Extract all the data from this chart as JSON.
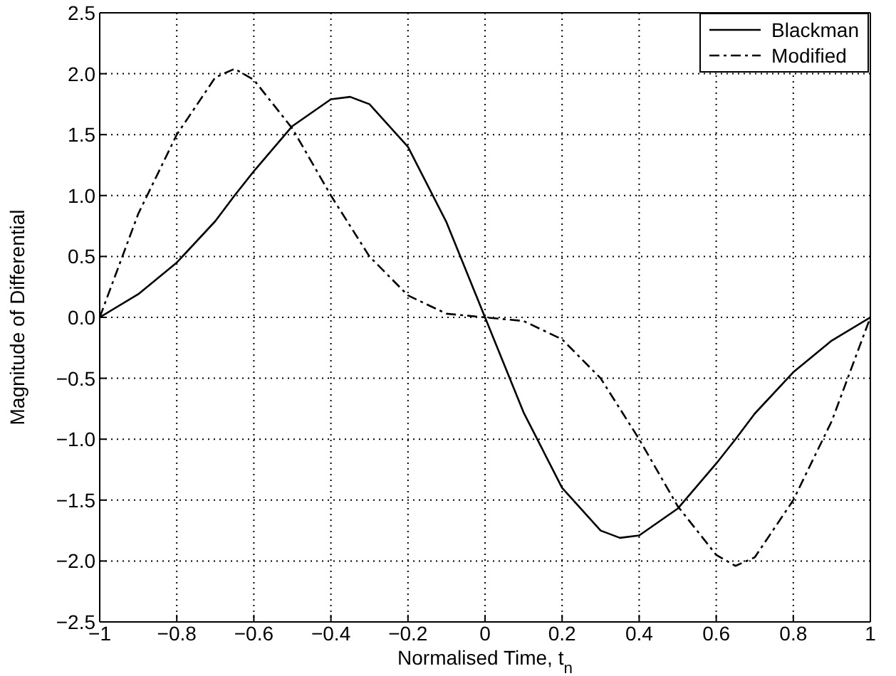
{
  "chart_data": {
    "type": "line",
    "xlabel": "Normalised Time, t$_{n}$",
    "ylabel": "Magnitude of Differential",
    "x": [
      -1,
      -0.9,
      -0.8,
      -0.7,
      -0.65,
      -0.6,
      -0.5,
      -0.4,
      -0.35,
      -0.3,
      -0.2,
      -0.1,
      0,
      0.1,
      0.2,
      0.3,
      0.35,
      0.4,
      0.5,
      0.6,
      0.65,
      0.7,
      0.8,
      0.9,
      1
    ],
    "series": [
      {
        "name": "Blackman",
        "color": "#000000",
        "line_style": "solid",
        "values": [
          0,
          0.19,
          0.45,
          0.79,
          1.0,
          1.2,
          1.57,
          1.79,
          1.81,
          1.75,
          1.4,
          0.78,
          0,
          -0.78,
          -1.4,
          -1.75,
          -1.81,
          -1.79,
          -1.57,
          -1.2,
          -1.0,
          -0.79,
          -0.45,
          -0.19,
          0
        ]
      },
      {
        "name": "Modified",
        "color": "#000000",
        "line_style": "dashed",
        "values": [
          0,
          0.85,
          1.5,
          1.97,
          2.04,
          1.95,
          1.55,
          1.0,
          0.75,
          0.5,
          0.18,
          0.03,
          0,
          -0.03,
          -0.18,
          -0.5,
          -0.75,
          -1.0,
          -1.55,
          -1.95,
          -2.04,
          -1.97,
          -1.5,
          -0.85,
          0
        ]
      }
    ],
    "xlim": [
      -1,
      1
    ],
    "xticks": [
      {
        "value": -1,
        "label": "−1"
      },
      {
        "value": -0.8,
        "label": "−0.8"
      },
      {
        "value": -0.6,
        "label": "−0.6"
      },
      {
        "value": -0.4,
        "label": "−0.4"
      },
      {
        "value": -0.2,
        "label": "−0.2"
      },
      0,
      0.2,
      0.4,
      0.6,
      0.8,
      1
    ],
    "ylim": [
      -2.5,
      2.5
    ],
    "yticks": [
      {
        "value": -2.5,
        "label": "−2.5"
      },
      {
        "value": -2,
        "label": "−2.0"
      },
      {
        "value": -1.5,
        "label": "−1.5"
      },
      {
        "value": -1,
        "label": "−1.0"
      },
      {
        "value": -0.5,
        "label": "−0.5"
      },
      {
        "value": 0,
        "label": "0.0"
      },
      0.5,
      {
        "value": 1,
        "label": "1.0"
      },
      1.5,
      {
        "value": 2,
        "label": "2.0"
      },
      2.5
    ],
    "grid": true,
    "legend": "top right",
    "marker": "none"
  }
}
